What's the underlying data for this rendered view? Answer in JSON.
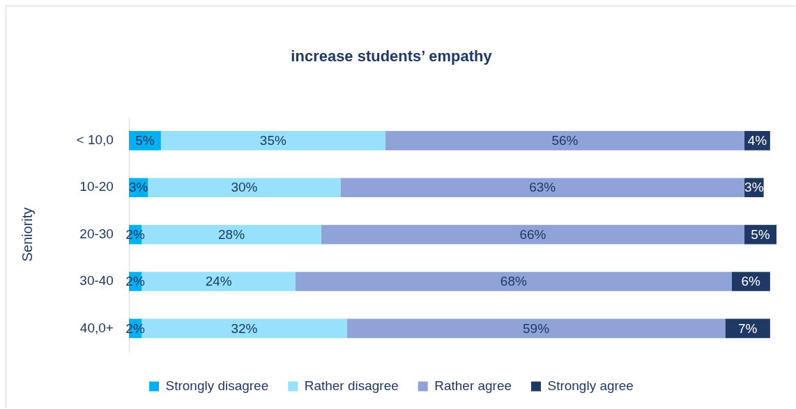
{
  "chart_data": {
    "type": "bar",
    "orientation": "horizontal",
    "stacked": true,
    "title": "increase students’ empathy",
    "ylabel": "Seniority",
    "categories": [
      "< 10,0",
      "10-20",
      "20-30",
      "30-40",
      "40,0+"
    ],
    "series": [
      {
        "name": "Strongly disagree",
        "color": "#00b0f0",
        "values": [
          5,
          3,
          2,
          2,
          2
        ],
        "value_labels": [
          "5%",
          "3%",
          "2%",
          "2%",
          "2%"
        ]
      },
      {
        "name": "Rather disagree",
        "color": "#97e1fc",
        "values": [
          35,
          30,
          28,
          24,
          32
        ],
        "value_labels": [
          "35%",
          "30%",
          "28%",
          "24%",
          "32%"
        ]
      },
      {
        "name": "Rather agree",
        "color": "#8fa3d8",
        "values": [
          56,
          63,
          66,
          68,
          59
        ],
        "value_labels": [
          "56%",
          "63%",
          "66%",
          "68%",
          "59%"
        ]
      },
      {
        "name": "Strongly agree",
        "color": "#203864",
        "values": [
          4,
          3,
          5,
          6,
          7
        ],
        "value_labels": [
          "4%",
          "3%",
          "5%",
          "6%",
          "7%"
        ]
      }
    ],
    "legend": "bottom",
    "tick_labels": "y"
  }
}
